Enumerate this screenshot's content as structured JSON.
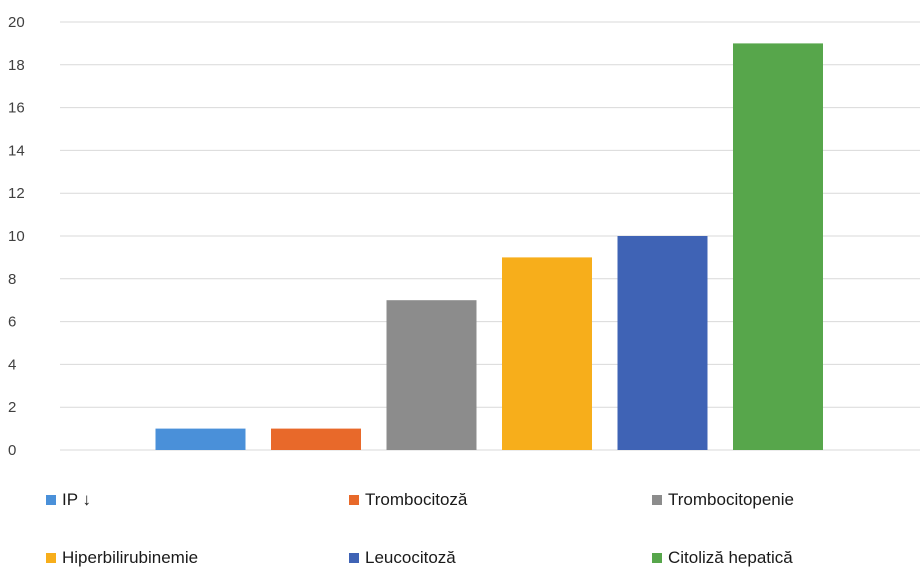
{
  "chart_data": {
    "type": "bar",
    "categories": [
      "IP ↓",
      "Trombocitoză",
      "Trombocitopenie",
      "Hiperbilirubinemie",
      "Leucocitoză",
      "Citoliză hepatică"
    ],
    "values": [
      1,
      1,
      7,
      9,
      10,
      19
    ],
    "colors": [
      "#4A90D9",
      "#E8692A",
      "#8C8C8C",
      "#F7AE1B",
      "#3F63B5",
      "#57A64B"
    ],
    "ylim": [
      0,
      20
    ],
    "yticks": [
      "0",
      "2",
      "4",
      "6",
      "8",
      "10",
      "12",
      "14",
      "16",
      "18",
      "20"
    ],
    "grid": true,
    "legend_position": "bottom",
    "title": "",
    "xlabel": "",
    "ylabel": ""
  }
}
